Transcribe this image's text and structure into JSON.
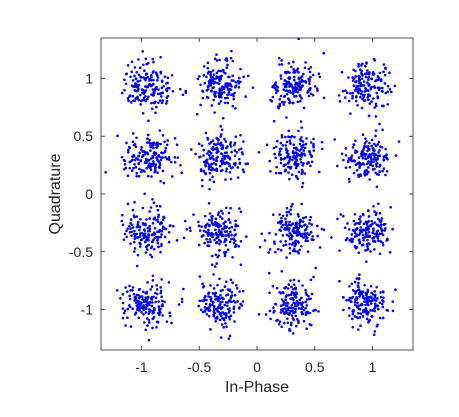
{
  "chart_data": {
    "type": "scatter",
    "title": "",
    "xlabel": "In-Phase",
    "ylabel": "Quadrature",
    "xlim": [
      -1.35,
      1.35
    ],
    "ylim": [
      -1.35,
      1.35
    ],
    "xticks": [
      -1,
      -0.5,
      0,
      0.5,
      1
    ],
    "yticks": [
      -1,
      -0.5,
      0,
      0.5,
      1
    ],
    "xtick_labels": [
      "-1",
      "-0.5",
      "0",
      "0.5",
      "1"
    ],
    "ytick_labels": [
      "-1",
      "-0.5",
      "0",
      "0.5",
      "1"
    ],
    "grid": false,
    "legend": "none",
    "marker_color": "#0000ee",
    "axis_color": "#262626",
    "constellation": "16-QAM",
    "ideal_levels": [
      -0.95,
      -0.32,
      0.32,
      0.95
    ],
    "noise_std": 0.1,
    "points_per_symbol": 160,
    "random_seed": 7
  }
}
